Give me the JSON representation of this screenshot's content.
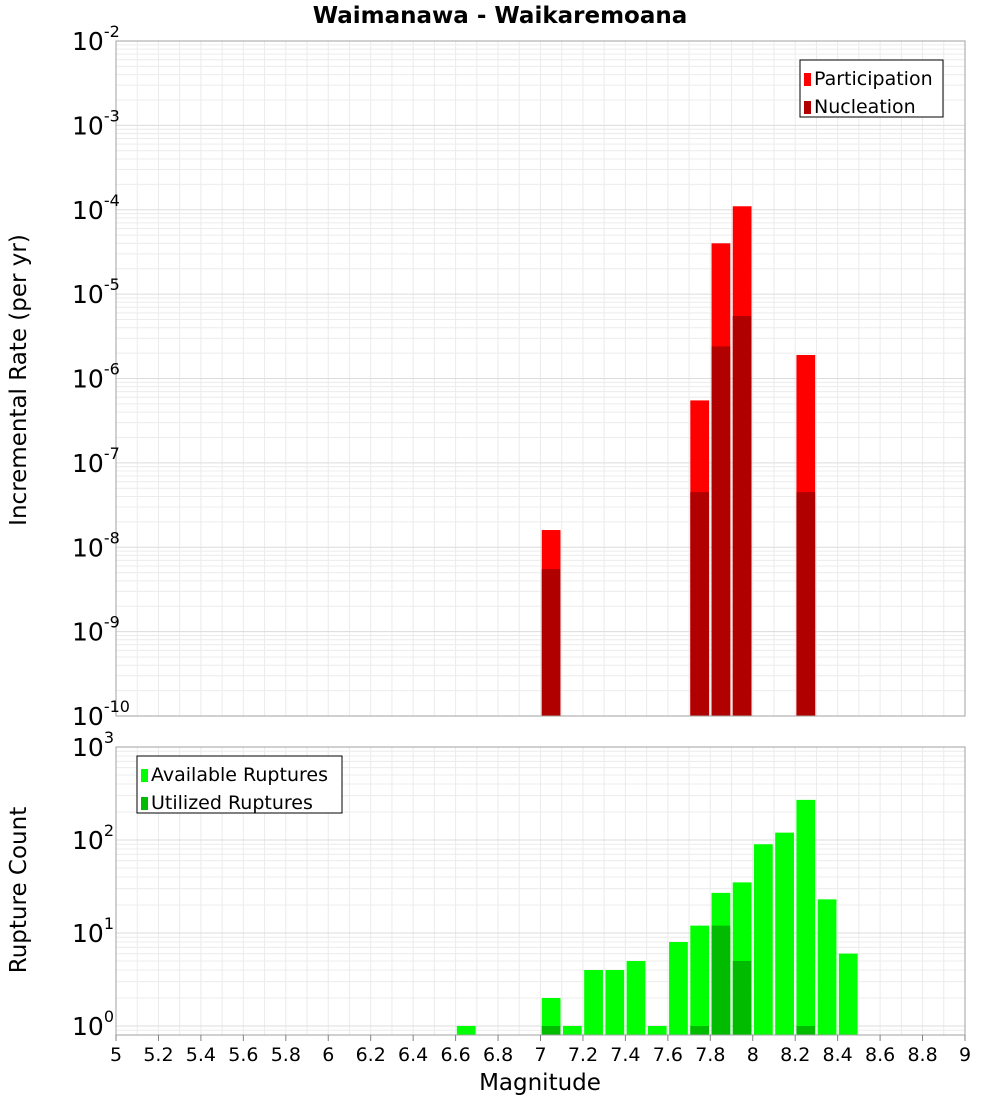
{
  "title": "Waimanawa - Waikaremoana",
  "x_axis": {
    "label": "Magnitude",
    "ticks": [
      "5",
      "5.2",
      "5.4",
      "5.6",
      "5.8",
      "6",
      "6.2",
      "6.4",
      "6.6",
      "6.8",
      "7",
      "7.2",
      "7.4",
      "7.6",
      "7.8",
      "8",
      "8.2",
      "8.4",
      "8.6",
      "8.8",
      "9"
    ]
  },
  "chart_data": [
    {
      "type": "bar",
      "ylabel": "Incremental Rate (per yr)",
      "yscale": "log",
      "xlim": [
        5,
        9
      ],
      "ylim": [
        1e-10,
        0.01
      ],
      "y_tick_exponents": [
        "-2",
        "-3",
        "-4",
        "-5",
        "-6",
        "-7",
        "-8",
        "-9",
        "-10"
      ],
      "legend_position": "top-right",
      "series": [
        {
          "name": "Participation",
          "color": "#ff0000",
          "x": [
            7.05,
            7.75,
            7.85,
            7.95,
            8.25
          ],
          "values": [
            1.6e-08,
            5.5e-07,
            4e-05,
            0.00011,
            1.9e-06
          ]
        },
        {
          "name": "Nucleation",
          "color": "#b00000",
          "x": [
            7.05,
            7.75,
            7.85,
            7.95,
            8.25
          ],
          "values": [
            5.5e-09,
            4.5e-08,
            2.4e-06,
            5.5e-06,
            4.5e-08
          ]
        }
      ]
    },
    {
      "type": "bar",
      "ylabel": "Rupture Count",
      "yscale": "log",
      "xlim": [
        5,
        9
      ],
      "ylim": [
        0.8,
        1000
      ],
      "y_tick_exponents": [
        "3",
        "2",
        "1",
        "0"
      ],
      "legend_position": "top-left",
      "series": [
        {
          "name": "Available Ruptures",
          "color": "#00ff00",
          "x": [
            6.65,
            7.05,
            7.15,
            7.25,
            7.35,
            7.45,
            7.55,
            7.65,
            7.75,
            7.85,
            7.95,
            8.05,
            8.15,
            8.25,
            8.35,
            8.45
          ],
          "values": [
            1,
            2,
            1,
            4,
            4,
            5,
            1,
            8,
            12,
            27,
            35,
            90,
            120,
            270,
            23,
            6
          ]
        },
        {
          "name": "Utilized Ruptures",
          "color": "#00bb00",
          "x": [
            7.05,
            7.75,
            7.85,
            7.95,
            8.25
          ],
          "values": [
            1,
            1,
            12,
            5,
            1
          ]
        }
      ]
    }
  ]
}
